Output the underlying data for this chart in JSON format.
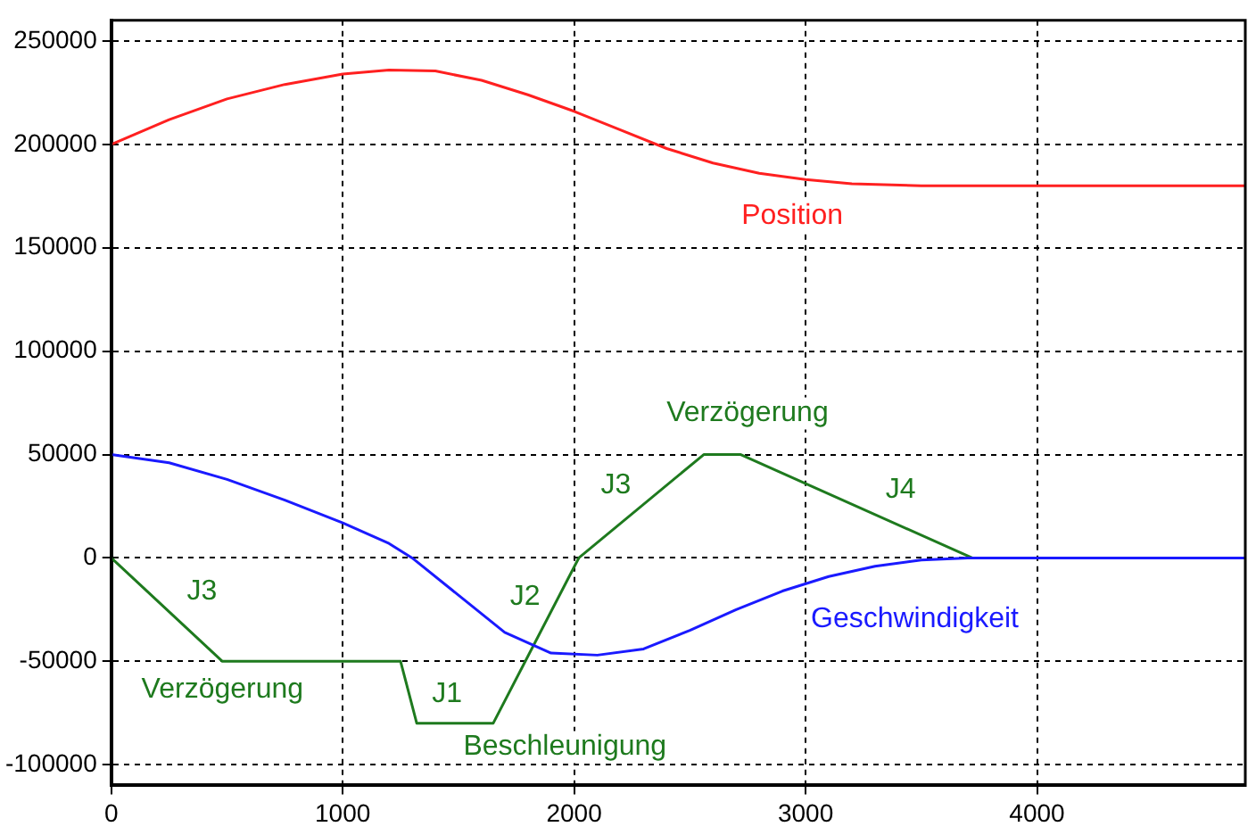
{
  "chart_data": {
    "type": "line",
    "xlim": [
      0,
      4900
    ],
    "ylim": [
      -110000,
      260000
    ],
    "xticks": [
      0,
      1000,
      2000,
      3000,
      4000
    ],
    "yticks": [
      -100000,
      -50000,
      0,
      50000,
      100000,
      150000,
      200000,
      250000
    ],
    "grid": true,
    "legend": false,
    "marker": "none",
    "line_style": "solid",
    "series": [
      {
        "name": "Position",
        "color": "#ff2020",
        "x": [
          0,
          250,
          500,
          750,
          1000,
          1200,
          1400,
          1600,
          1800,
          2000,
          2200,
          2400,
          2600,
          2800,
          3000,
          3200,
          3500,
          4900
        ],
        "values": [
          200000,
          212000,
          222000,
          229000,
          234000,
          236000,
          235500,
          231000,
          224000,
          216000,
          207000,
          198000,
          191000,
          186000,
          183000,
          181000,
          180000,
          180000
        ]
      },
      {
        "name": "Geschwindigkeit",
        "color": "#1a1aff",
        "x": [
          0,
          250,
          500,
          750,
          1000,
          1200,
          1300,
          1500,
          1700,
          1900,
          2100,
          2300,
          2500,
          2700,
          2900,
          3100,
          3300,
          3500,
          3700,
          4900
        ],
        "values": [
          50000,
          46000,
          38000,
          28000,
          17000,
          7000,
          0,
          -18000,
          -36000,
          -46000,
          -47000,
          -44000,
          -35000,
          -25000,
          -16000,
          -9000,
          -4000,
          -1000,
          0,
          0
        ]
      },
      {
        "color": "#1e7a1e",
        "x": [
          0,
          480,
          1250,
          1320,
          1650,
          2020,
          2560,
          2720,
          3720,
          4900
        ],
        "values": [
          0,
          -50000,
          -50000,
          -80000,
          -80000,
          0,
          50000,
          50000,
          0,
          0
        ]
      }
    ],
    "annotations": [
      "J3",
      "Verzögerung",
      "J1",
      "Beschleunigung",
      "J2",
      "J3",
      "J4",
      "Verzögerung"
    ]
  }
}
